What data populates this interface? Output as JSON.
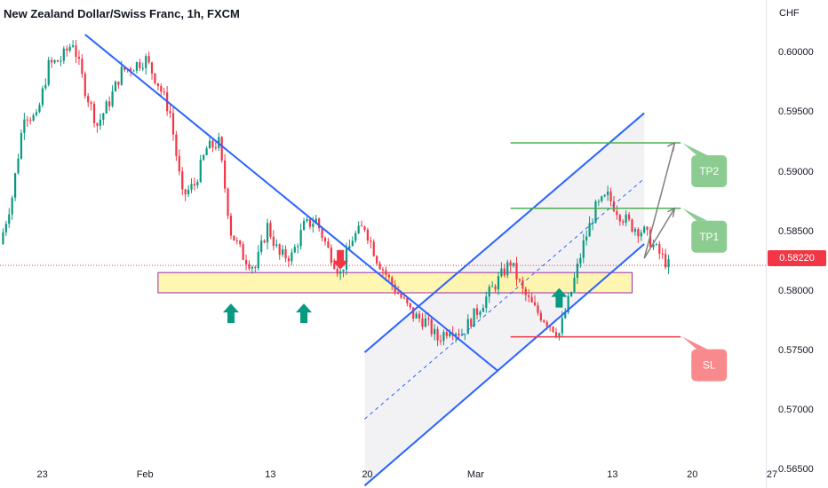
{
  "header": {
    "title": "New Zealand Dollar/Swiss Franc, 1h, FXCM",
    "currency": "CHF"
  },
  "colors": {
    "up": "#089981",
    "down": "#f23645",
    "trendline": "#2962ff",
    "target": "#4caf50",
    "stop": "#f23645",
    "zone_fill": "#fff59d",
    "zone_border": "#9c27b0",
    "arrow_up": "#089981",
    "arrow_down": "#f23645",
    "projection": "#808080"
  },
  "chart_data": {
    "type": "candlestick",
    "title": "New Zealand Dollar/Swiss Franc, 1h, FXCM",
    "yaxis": {
      "unit": "CHF",
      "range": [
        0.5635,
        0.6045
      ],
      "ticks": [
        "0.60000",
        "0.59500",
        "0.59000",
        "0.58500",
        "0.58000",
        "0.57500",
        "0.57000",
        "0.56500"
      ]
    },
    "xaxis": {
      "ticks": [
        "23",
        "Feb",
        "13",
        "20",
        "Mar",
        "13",
        "20",
        "27"
      ]
    },
    "current_price": "0.58220",
    "grid": false,
    "price_path": [
      [
        0,
        0.584
      ],
      [
        1,
        0.588
      ],
      [
        2,
        0.595
      ],
      [
        3,
        0.5945
      ],
      [
        4,
        0.599
      ],
      [
        5,
        0.5995
      ],
      [
        6,
        0.601
      ],
      [
        7,
        0.597
      ],
      [
        8,
        0.594
      ],
      [
        9,
        0.596
      ],
      [
        10,
        0.5985
      ],
      [
        11,
        0.599
      ],
      [
        12,
        0.5995
      ],
      [
        13,
        0.5975
      ],
      [
        14,
        0.595
      ],
      [
        15,
        0.588
      ],
      [
        16,
        0.589
      ],
      [
        17,
        0.592
      ],
      [
        18,
        0.5925
      ],
      [
        19,
        0.585
      ],
      [
        20,
        0.583
      ],
      [
        21,
        0.582
      ],
      [
        22,
        0.5855
      ],
      [
        23,
        0.583
      ],
      [
        24,
        0.583
      ],
      [
        25,
        0.5855
      ],
      [
        26,
        0.586
      ],
      [
        27,
        0.5835
      ],
      [
        28,
        0.5815
      ],
      [
        29,
        0.5845
      ],
      [
        30,
        0.5855
      ],
      [
        31,
        0.5828
      ],
      [
        32,
        0.581
      ],
      [
        33,
        0.5795
      ],
      [
        34,
        0.578
      ],
      [
        35,
        0.5775
      ],
      [
        36,
        0.576
      ],
      [
        37,
        0.577
      ],
      [
        38,
        0.5765
      ],
      [
        39,
        0.578
      ],
      [
        40,
        0.5795
      ],
      [
        41,
        0.581
      ],
      [
        42,
        0.5825
      ],
      [
        43,
        0.58
      ],
      [
        44,
        0.5785
      ],
      [
        45,
        0.5775
      ],
      [
        46,
        0.5765
      ],
      [
        47,
        0.58
      ],
      [
        48,
        0.584
      ],
      [
        49,
        0.587
      ],
      [
        50,
        0.588
      ],
      [
        51,
        0.5865
      ],
      [
        52,
        0.5855
      ],
      [
        53,
        0.585
      ],
      [
        54,
        0.5835
      ],
      [
        55,
        0.5822
      ]
    ],
    "trendlines": [
      {
        "name": "descending-trendline",
        "p1": [
          7,
          0.6016
        ],
        "p2": [
          41,
          0.5733
        ]
      },
      {
        "name": "channel-upper",
        "p1": [
          30,
          0.5749
        ],
        "p2": [
          53,
          0.595
        ]
      },
      {
        "name": "channel-lower",
        "p1": [
          30,
          0.5637
        ],
        "p2": [
          53,
          0.584
        ]
      },
      {
        "name": "channel-mid",
        "p1": [
          30,
          0.5693
        ],
        "p2": [
          53,
          0.5895
        ]
      }
    ],
    "zones": [
      {
        "name": "support-zone",
        "from_x": 13,
        "to_x": 52,
        "low": 0.5799,
        "high": 0.5816
      }
    ],
    "levels": [
      {
        "name": "tp2-level",
        "label": "TP2",
        "price": 0.5925,
        "from_x": 42,
        "to_x": 56
      },
      {
        "name": "tp1-level",
        "label": "TP1",
        "price": 0.587,
        "from_x": 42,
        "to_x": 56
      },
      {
        "name": "sl-level",
        "label": "SL",
        "price": 0.5762,
        "from_x": 42,
        "to_x": 56
      }
    ],
    "labels": [
      "TP2",
      "TP1",
      "SL"
    ],
    "markers": [
      {
        "type": "up-arrow",
        "x": 19,
        "price": 0.579
      },
      {
        "type": "up-arrow",
        "x": 25,
        "price": 0.579
      },
      {
        "type": "down-arrow",
        "x": 28,
        "price": 0.5835
      },
      {
        "type": "up-arrow",
        "x": 46,
        "price": 0.5803
      }
    ]
  }
}
